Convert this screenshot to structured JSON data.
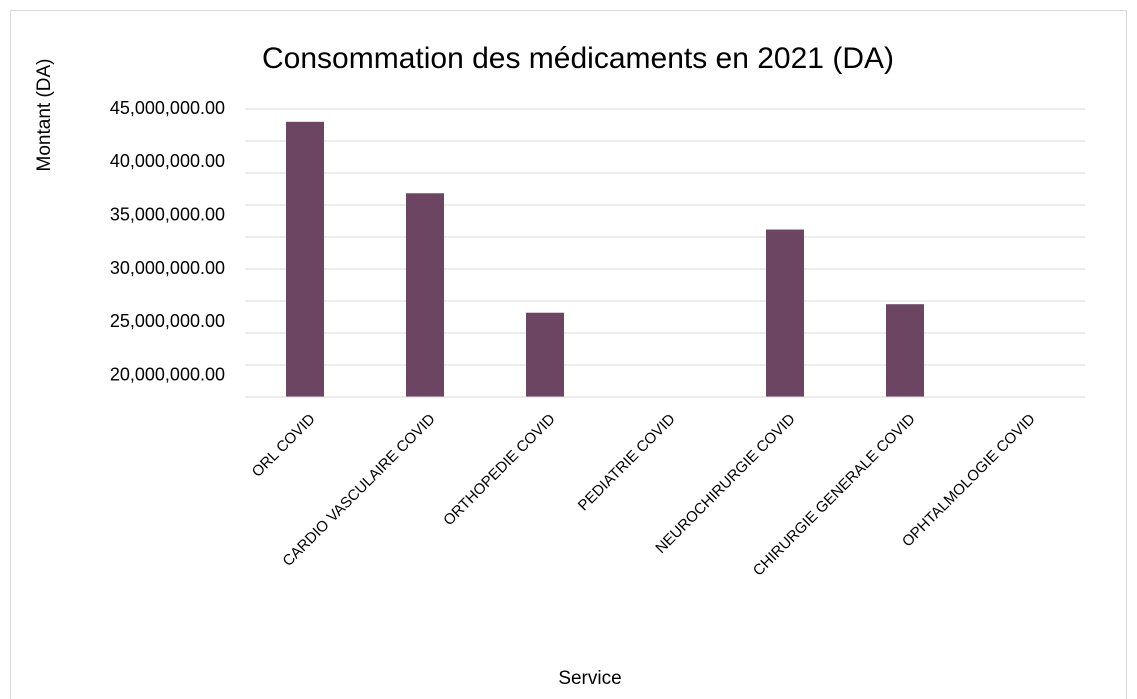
{
  "chart_data": {
    "type": "bar",
    "title": "Consommation des médicaments en 2021 (DA)",
    "x_label": "Service",
    "y_label": "Montant (DA)",
    "categories": [
      "ORL COVID",
      "CARDIO VASCULAIRE COVID",
      "ORTHOPEDIE COVID",
      "PEDIATRIE COVID",
      "NEUROCHIRURGIE COVID",
      "CHIRURGIE GENERALE COVID",
      "OPHTALMOLOGIE COVID"
    ],
    "values": [
      43800000,
      37100000,
      25900000,
      null,
      33700000,
      26700000,
      null
    ],
    "color": "#6b4562",
    "ylim": [
      18000000,
      45000000
    ],
    "yticks": [
      {
        "value": 20000000,
        "label": "20,000,000.00"
      },
      {
        "value": 25000000,
        "label": "25,000,000.00"
      },
      {
        "value": 30000000,
        "label": "30,000,000.00"
      },
      {
        "value": 35000000,
        "label": "35,000,000.00"
      },
      {
        "value": 40000000,
        "label": "40,000,000.00"
      },
      {
        "value": 45000000,
        "label": "45,000,000.00"
      }
    ],
    "gridlines": [
      18000000,
      21000000,
      24000000,
      27000000,
      30000000,
      33000000,
      36000000,
      39000000,
      42000000,
      45000000
    ],
    "grid": true
  }
}
